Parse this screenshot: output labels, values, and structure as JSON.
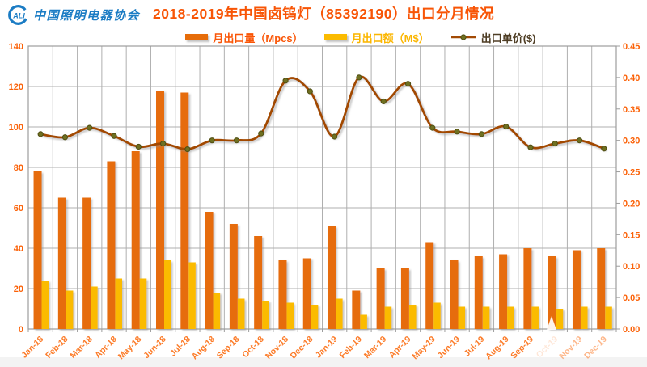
{
  "header": {
    "logo": {
      "icon_text": "ALI",
      "org_name": "中国照明电器协会"
    },
    "title": "2018-2019年中国卤钨灯（85392190）出口分月情况"
  },
  "chart_data": {
    "type": "bar",
    "subtype": "bar-line combo with dual value axes, smoothed line",
    "title": "2018-2019年中国卤钨灯（85392190）出口分月情况",
    "categories": [
      "Jan-18",
      "Feb-18",
      "Mar-18",
      "Apr-18",
      "May-18",
      "Jun-18",
      "Jul-18",
      "Aug-18",
      "Sep-18",
      "Oct-18",
      "Nov-18",
      "Dec-18",
      "Jan-19",
      "Feb-19",
      "Mar-19",
      "Apr-19",
      "May-19",
      "Jun-19",
      "Jul-19",
      "Aug-19",
      "Sep-19",
      "Oct-19",
      "Nov-19",
      "Dec-19"
    ],
    "series": [
      {
        "name": "月出口量（Mpcs）",
        "type": "bar",
        "axis": "left",
        "color": "#E66C09",
        "values": [
          78,
          65,
          65,
          83,
          88,
          118,
          117,
          58,
          52,
          46,
          34,
          35,
          51,
          19,
          30,
          30,
          43,
          34,
          36,
          37,
          40,
          36,
          39,
          40
        ]
      },
      {
        "name": "月出口额（M$）",
        "type": "bar",
        "axis": "left",
        "color": "#FBBB00",
        "values": [
          24,
          19,
          21,
          25,
          25,
          34,
          33,
          18,
          15,
          14,
          13,
          12,
          15,
          7,
          11,
          12,
          13,
          11,
          11,
          11,
          11,
          10,
          11,
          11
        ]
      },
      {
        "name": "出口单价($)",
        "type": "line",
        "axis": "right",
        "color": "#A24A05",
        "marker_color": "#6F7021",
        "values": [
          0.31,
          0.305,
          0.32,
          0.307,
          0.29,
          0.295,
          0.286,
          0.3,
          0.3,
          0.311,
          0.395,
          0.378,
          0.306,
          0.4,
          0.362,
          0.39,
          0.32,
          0.314,
          0.31,
          0.322,
          0.289,
          0.295,
          0.3,
          0.287
        ]
      }
    ],
    "left_axis": {
      "min": 0,
      "max": 140,
      "step": 20
    },
    "right_axis": {
      "min": 0,
      "max": 0.45,
      "step": 0.05,
      "decimals": 2
    },
    "grid": true,
    "legend_position": "top"
  },
  "colors": {
    "title": "#F85506",
    "axis_numbers": "#FB6107",
    "x_labels": "#FC7B28",
    "logo_blue": "#1B7CC4",
    "legend_volume_text": "#FA5506",
    "legend_value_text": "#FBB600",
    "legend_price_text": "#4E3D24",
    "gridline": "#AFAFAF",
    "plot_border": "#9C9C9C"
  }
}
